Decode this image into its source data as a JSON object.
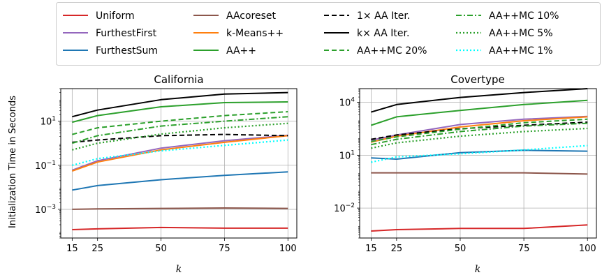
{
  "legend": {
    "entries": [
      {
        "label": "Uniform",
        "color": "#d62728",
        "dash": "solid",
        "col": 0
      },
      {
        "label": "FurthestFirst",
        "color": "#9467bd",
        "dash": "solid",
        "col": 0
      },
      {
        "label": "FurthestSum",
        "color": "#1f77b4",
        "dash": "solid",
        "col": 0
      },
      {
        "label": "AAcoreset",
        "color": "#8c564b",
        "dash": "solid",
        "col": 1
      },
      {
        "label": "k-Means++",
        "color": "#ff7f0e",
        "dash": "solid",
        "col": 1
      },
      {
        "label": "AA++",
        "color": "#2ca02c",
        "dash": "solid",
        "col": 1
      },
      {
        "label": "1× AA Iter.",
        "color": "#000000",
        "dash": "dashed",
        "col": 2
      },
      {
        "label": "k× AA Iter.",
        "color": "#000000",
        "dash": "solid",
        "col": 2
      },
      {
        "label": "AA++MC 20%",
        "color": "#2ca02c",
        "dash": "dashed",
        "col": 2
      },
      {
        "label": "AA++MC 10%",
        "color": "#2ca02c",
        "dash": "dashdot",
        "col": 3
      },
      {
        "label": "AA++MC 5%",
        "color": "#2ca02c",
        "dash": "dotted",
        "col": 3
      },
      {
        "label": "AA++MC 1%",
        "color": "#00ffff",
        "dash": "dotted",
        "col": 3
      }
    ]
  },
  "ylabel": "Initialization Time in Seconds",
  "chart_data": [
    {
      "type": "line",
      "title": "California",
      "xlabel": "k",
      "ylabel": "Initialization Time in Seconds",
      "yscale": "log",
      "ylim": [
        5e-05,
        300
      ],
      "yticks": [
        {
          "value": 0.001,
          "base": "10",
          "exp": "−3"
        },
        {
          "value": 0.1,
          "base": "10",
          "exp": "−1"
        },
        {
          "value": 10,
          "base": "10",
          "exp": "1"
        }
      ],
      "x": [
        15,
        25,
        50,
        75,
        100
      ],
      "xticks": [
        "15",
        "25",
        "50",
        "75",
        "100"
      ],
      "grid": true,
      "series": [
        {
          "name": "Uniform",
          "values": [
            0.00012,
            0.00013,
            0.00015,
            0.00014,
            0.00014
          ]
        },
        {
          "name": "FurthestFirst",
          "values": [
            0.06,
            0.16,
            0.6,
            1.3,
            2.3
          ]
        },
        {
          "name": "FurthestSum",
          "values": [
            0.0075,
            0.012,
            0.022,
            0.035,
            0.05
          ]
        },
        {
          "name": "AAcoreset",
          "values": [
            0.001,
            0.00105,
            0.0011,
            0.00115,
            0.0011
          ]
        },
        {
          "name": "k-Means++",
          "values": [
            0.055,
            0.14,
            0.5,
            1.1,
            2.2
          ]
        },
        {
          "name": "AA++",
          "values": [
            9,
            18,
            45,
            70,
            75
          ]
        },
        {
          "name": "1× AA Iter.",
          "values": [
            1.1,
            1.4,
            2.2,
            2.5,
            2.2
          ]
        },
        {
          "name": "k× AA Iter.",
          "values": [
            16,
            32,
            95,
            170,
            200
          ]
        },
        {
          "name": "AA++MC 20%",
          "values": [
            2.5,
            5,
            10,
            18,
            27
          ]
        },
        {
          "name": "AA++MC 10%",
          "values": [
            1.0,
            2.2,
            6,
            10,
            16
          ]
        },
        {
          "name": "AA++MC 5%",
          "values": [
            0.5,
            1.0,
            2.6,
            5,
            8
          ]
        },
        {
          "name": "AA++MC 1%",
          "values": [
            0.1,
            0.2,
            0.45,
            0.8,
            1.4
          ]
        }
      ]
    },
    {
      "type": "line",
      "title": "Covertype",
      "xlabel": "k",
      "ylabel": "",
      "yscale": "log",
      "ylim": [
        0.0002,
        60000
      ],
      "yticks": [
        {
          "value": 0.01,
          "base": "10",
          "exp": "−2"
        },
        {
          "value": 10,
          "base": "10",
          "exp": "1"
        },
        {
          "value": 10000,
          "base": "10",
          "exp": "4"
        }
      ],
      "x": [
        15,
        25,
        50,
        75,
        100
      ],
      "xticks": [
        "15",
        "25",
        "50",
        "75",
        "100"
      ],
      "grid": true,
      "series": [
        {
          "name": "Uniform",
          "values": [
            0.0005,
            0.0006,
            0.0007,
            0.0007,
            0.0011
          ]
        },
        {
          "name": "FurthestFirst",
          "values": [
            70,
            140,
            550,
            1100,
            1600
          ]
        },
        {
          "name": "FurthestSum",
          "values": [
            7,
            6,
            14,
            19,
            17
          ]
        },
        {
          "name": "AAcoreset",
          "values": [
            1.0,
            1.0,
            1.0,
            1.0,
            0.85
          ]
        },
        {
          "name": "k-Means++",
          "values": [
            55,
            120,
            400,
            900,
            1500
          ]
        },
        {
          "name": "AA++",
          "values": [
            500,
            1500,
            3500,
            7500,
            13000
          ]
        },
        {
          "name": "1× AA Iter.",
          "values": [
            80,
            140,
            320,
            500,
            750
          ]
        },
        {
          "name": "k× AA Iter.",
          "values": [
            2800,
            7500,
            19000,
            36000,
            60000
          ]
        },
        {
          "name": "AA++MC 20%",
          "values": [
            60,
            110,
            300,
            700,
            1100
          ]
        },
        {
          "name": "AA++MC 10%",
          "values": [
            40,
            80,
            220,
            450,
            650
          ]
        },
        {
          "name": "AA++MC 5%",
          "values": [
            25,
            50,
            120,
            220,
            330
          ]
        },
        {
          "name": "AA++MC 1%",
          "values": [
            4,
            8,
            12,
            20,
            35
          ]
        }
      ]
    }
  ]
}
